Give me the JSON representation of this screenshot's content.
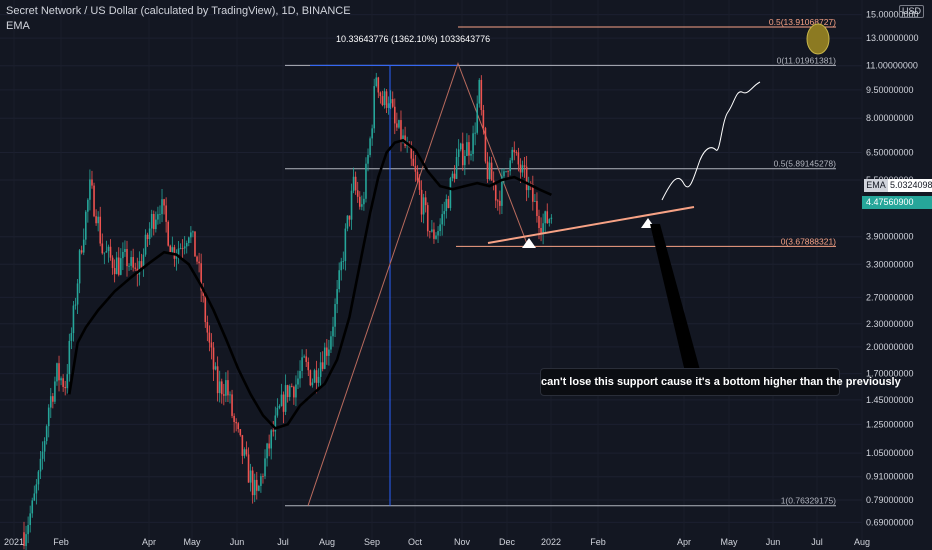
{
  "header": {
    "title": "Secret Network / US Dollar (calculated by TradingView), 1D, BINANCE",
    "indicator": "EMA",
    "currency": "USD"
  },
  "annotations": {
    "measure": "10.33643776 (1362.10%) 1033643776",
    "note": "can't lose this support cause it's a bottom higher than the previously"
  },
  "badges": {
    "ema_label": "EMA",
    "ema_value": "5.03240983",
    "price_value": "4.47560900"
  },
  "colors": {
    "up": "#26a69a",
    "down": "#ef5350",
    "ema": "#000000",
    "fib": "#b2b5be",
    "fib_accent": "#f7a285",
    "trend": "#f7a285",
    "measure": "#2962ff",
    "price_badge": "#26a69a"
  },
  "chart_data": {
    "type": "candlestick",
    "title": "Secret Network / US Dollar (calculated by TradingView), 1D, BINANCE",
    "y_scale": "log",
    "ylim": [
      0.62,
      15.8
    ],
    "y_ticks": [
      "15.00000000",
      "13.00000000",
      "11.00000000",
      "9.50000000",
      "8.00000000",
      "6.50000000",
      "5.50000000",
      "4.47560900",
      "3.90000000",
      "3.30000000",
      "2.70000000",
      "2.30000000",
      "2.00000000",
      "1.70000000",
      "1.45000000",
      "1.25000000",
      "1.05000000",
      "0.91000000",
      "0.79000000",
      "0.69000000"
    ],
    "x_ticks": [
      "2021",
      "Feb",
      "Apr",
      "May",
      "Jun",
      "Jul",
      "Aug",
      "Sep",
      "Oct",
      "Nov",
      "Dec",
      "2022",
      "Feb",
      "Apr",
      "May",
      "Jun",
      "Jul",
      "Aug"
    ],
    "price_path": [
      [
        0,
        0.65
      ],
      [
        4,
        0.75
      ],
      [
        8,
        0.95
      ],
      [
        12,
        1.4
      ],
      [
        16,
        1.7
      ],
      [
        20,
        1.6
      ],
      [
        24,
        2.4
      ],
      [
        28,
        3.8
      ],
      [
        32,
        5.2
      ],
      [
        35,
        4.6
      ],
      [
        38,
        3.6
      ],
      [
        42,
        3.4
      ],
      [
        46,
        3.3
      ],
      [
        50,
        3.4
      ],
      [
        54,
        3.1
      ],
      [
        58,
        3.5
      ],
      [
        62,
        4.3
      ],
      [
        66,
        4.8
      ],
      [
        69,
        4.2
      ],
      [
        72,
        3.6
      ],
      [
        76,
        3.7
      ],
      [
        80,
        4.1
      ],
      [
        84,
        3.4
      ],
      [
        87,
        2.6
      ],
      [
        90,
        2.0
      ],
      [
        94,
        1.55
      ],
      [
        98,
        1.6
      ],
      [
        102,
        1.25
      ],
      [
        106,
        1.05
      ],
      [
        110,
        0.9
      ],
      [
        113,
        0.8
      ],
      [
        116,
        0.95
      ],
      [
        120,
        1.15
      ],
      [
        124,
        1.35
      ],
      [
        128,
        1.55
      ],
      [
        132,
        1.6
      ],
      [
        136,
        1.8
      ],
      [
        140,
        1.65
      ],
      [
        144,
        1.85
      ],
      [
        148,
        2.05
      ],
      [
        152,
        2.7
      ],
      [
        156,
        3.9
      ],
      [
        160,
        5.3
      ],
      [
        164,
        4.6
      ],
      [
        168,
        7.0
      ],
      [
        171,
        10.5
      ],
      [
        174,
        8.8
      ],
      [
        177,
        9.2
      ],
      [
        180,
        7.6
      ],
      [
        183,
        7.2
      ],
      [
        186,
        6.5
      ],
      [
        190,
        5.6
      ],
      [
        194,
        4.6
      ],
      [
        198,
        3.9
      ],
      [
        202,
        4.2
      ],
      [
        206,
        5.0
      ],
      [
        210,
        6.2
      ],
      [
        214,
        6.6
      ],
      [
        218,
        7.0
      ],
      [
        221,
        9.5
      ],
      [
        224,
        6.0
      ],
      [
        227,
        5.5
      ],
      [
        230,
        4.9
      ],
      [
        233,
        5.5
      ],
      [
        236,
        6.6
      ],
      [
        240,
        6.0
      ],
      [
        244,
        5.4
      ],
      [
        248,
        4.7
      ],
      [
        252,
        4.2
      ],
      [
        256,
        4.47
      ]
    ],
    "ema_path": [
      [
        22,
        1.5
      ],
      [
        26,
        2.05
      ],
      [
        30,
        2.25
      ],
      [
        36,
        2.5
      ],
      [
        44,
        2.8
      ],
      [
        52,
        3.05
      ],
      [
        60,
        3.3
      ],
      [
        68,
        3.55
      ],
      [
        74,
        3.5
      ],
      [
        80,
        3.3
      ],
      [
        86,
        2.9
      ],
      [
        92,
        2.5
      ],
      [
        98,
        2.1
      ],
      [
        104,
        1.75
      ],
      [
        110,
        1.5
      ],
      [
        116,
        1.32
      ],
      [
        122,
        1.22
      ],
      [
        128,
        1.25
      ],
      [
        134,
        1.4
      ],
      [
        140,
        1.5
      ],
      [
        146,
        1.6
      ],
      [
        152,
        1.85
      ],
      [
        158,
        2.4
      ],
      [
        164,
        3.5
      ],
      [
        168,
        4.5
      ],
      [
        172,
        5.6
      ],
      [
        176,
        6.5
      ],
      [
        180,
        6.9
      ],
      [
        184,
        7.0
      ],
      [
        190,
        6.6
      ],
      [
        196,
        5.8
      ],
      [
        202,
        5.3
      ],
      [
        208,
        5.2
      ],
      [
        214,
        5.3
      ],
      [
        220,
        5.4
      ],
      [
        226,
        5.3
      ],
      [
        232,
        5.5
      ],
      [
        238,
        5.6
      ],
      [
        244,
        5.4
      ],
      [
        250,
        5.2
      ],
      [
        256,
        5.03
      ]
    ],
    "fib_levels": [
      {
        "label": "0.5(13.91068727)",
        "value": 13.91068727
      },
      {
        "label": "0(11.01961381)",
        "value": 11.01961381
      },
      {
        "label": "0.5(5.89145278)",
        "value": 5.89145278
      },
      {
        "label": "0(3.67888321)",
        "value": 3.67888321
      },
      {
        "label": "1(0.76329175)",
        "value": 0.76329175
      }
    ],
    "series": [
      {
        "name": "EMA",
        "value": 5.03240983
      }
    ]
  }
}
